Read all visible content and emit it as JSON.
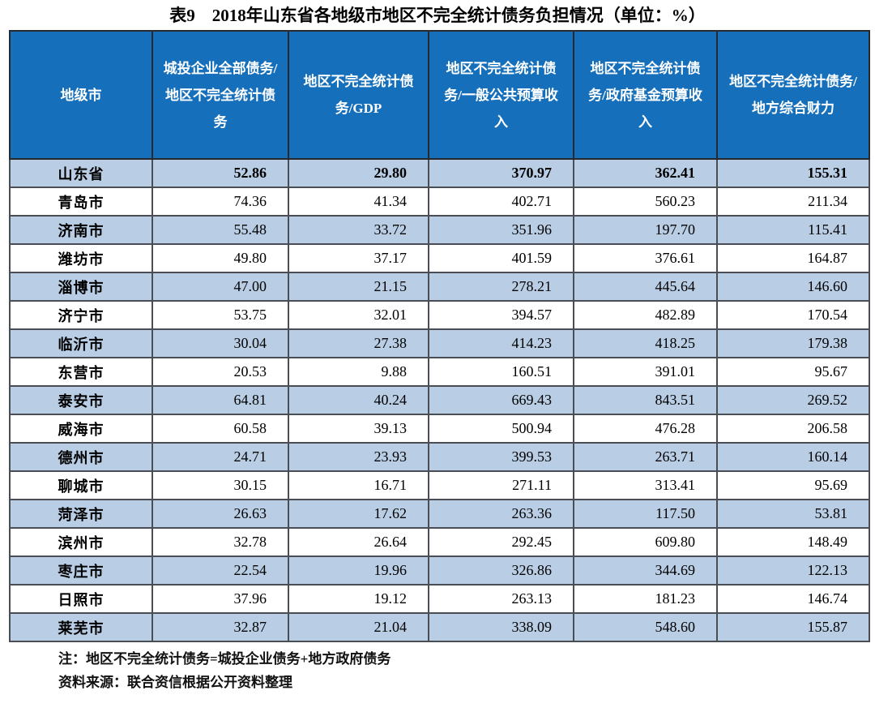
{
  "title": "表9　2018年山东省各地级市地区不完全统计债务负担情况（单位：%）",
  "colors": {
    "header_bg": "#156FBB",
    "header_text": "#FFFFFF",
    "row_alt_bg": "#B9CDE4",
    "row_bg": "#FFFFFF",
    "border": "#4A4E54",
    "outer_border": "#1D1F22",
    "text": "#000000"
  },
  "table": {
    "columns": [
      "地级市",
      "城投企业全部债务/地区不完全统计债务",
      "地区不完全统计债务/GDP",
      "地区不完全统计债务/一般公共预算收入",
      "地区不完全统计债务/政府基金预算收入",
      "地区不完全统计债务/地方综合财力"
    ],
    "rows": [
      {
        "region": "山东省",
        "values": [
          "52.86",
          "29.80",
          "370.97",
          "362.41",
          "155.31"
        ],
        "emphasis": true
      },
      {
        "region": "青岛市",
        "values": [
          "74.36",
          "41.34",
          "402.71",
          "560.23",
          "211.34"
        ],
        "emphasis": false
      },
      {
        "region": "济南市",
        "values": [
          "55.48",
          "33.72",
          "351.96",
          "197.70",
          "115.41"
        ],
        "emphasis": false
      },
      {
        "region": "潍坊市",
        "values": [
          "49.80",
          "37.17",
          "401.59",
          "376.61",
          "164.87"
        ],
        "emphasis": false
      },
      {
        "region": "淄博市",
        "values": [
          "47.00",
          "21.15",
          "278.21",
          "445.64",
          "146.60"
        ],
        "emphasis": false
      },
      {
        "region": "济宁市",
        "values": [
          "53.75",
          "32.01",
          "394.57",
          "482.89",
          "170.54"
        ],
        "emphasis": false
      },
      {
        "region": "临沂市",
        "values": [
          "30.04",
          "27.38",
          "414.23",
          "418.25",
          "179.38"
        ],
        "emphasis": false
      },
      {
        "region": "东营市",
        "values": [
          "20.53",
          "9.88",
          "160.51",
          "391.01",
          "95.67"
        ],
        "emphasis": false
      },
      {
        "region": "泰安市",
        "values": [
          "64.81",
          "40.24",
          "669.43",
          "843.51",
          "269.52"
        ],
        "emphasis": false
      },
      {
        "region": "威海市",
        "values": [
          "60.58",
          "39.13",
          "500.94",
          "476.28",
          "206.58"
        ],
        "emphasis": false
      },
      {
        "region": "德州市",
        "values": [
          "24.71",
          "23.93",
          "399.53",
          "263.71",
          "160.14"
        ],
        "emphasis": false
      },
      {
        "region": "聊城市",
        "values": [
          "30.15",
          "16.71",
          "271.11",
          "313.41",
          "95.69"
        ],
        "emphasis": false
      },
      {
        "region": "菏泽市",
        "values": [
          "26.63",
          "17.62",
          "263.36",
          "117.50",
          "53.81"
        ],
        "emphasis": false
      },
      {
        "region": "滨州市",
        "values": [
          "32.78",
          "26.64",
          "292.45",
          "609.80",
          "148.49"
        ],
        "emphasis": false
      },
      {
        "region": "枣庄市",
        "values": [
          "22.54",
          "19.96",
          "326.86",
          "344.69",
          "122.13"
        ],
        "emphasis": false
      },
      {
        "region": "日照市",
        "values": [
          "37.96",
          "19.12",
          "263.13",
          "181.23",
          "146.74"
        ],
        "emphasis": false
      },
      {
        "region": "莱芜市",
        "values": [
          "32.87",
          "21.04",
          "338.09",
          "548.60",
          "155.87"
        ],
        "emphasis": false
      }
    ]
  },
  "notes": {
    "note1": "注：地区不完全统计债务=城投企业债务+地方政府债务",
    "note2": "资料来源：联合资信根据公开资料整理"
  }
}
